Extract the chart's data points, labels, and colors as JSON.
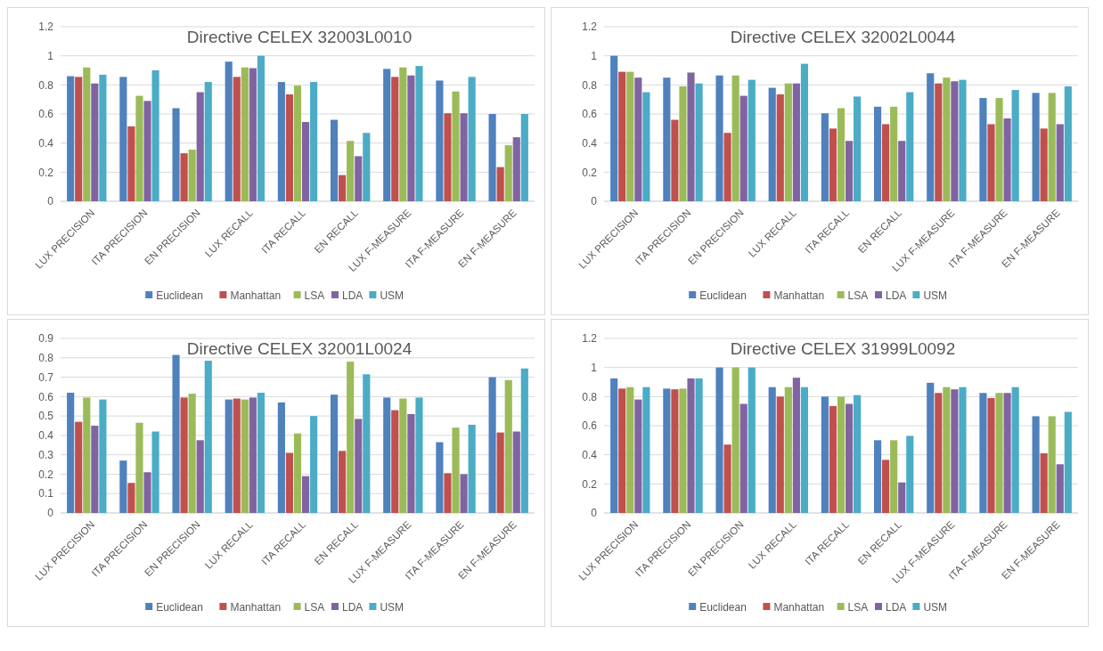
{
  "chart_data": [
    {
      "type": "bar",
      "title": "Directive CELEX 32003L0010",
      "categories": [
        "LUX PRECISION",
        "ITA PRECISION",
        "EN PRECISION",
        "LUX RECALL",
        "ITA RECALL",
        "EN RECALL",
        "LUX F-MEASURE",
        "ITA F-MEASURE",
        "EN F-MEASURE"
      ],
      "ylim": [
        0,
        1.2
      ],
      "yticks": [
        0,
        0.2,
        0.4,
        0.6,
        0.8,
        1,
        1.2
      ],
      "grid": "y",
      "legend": "bottom",
      "series": [
        {
          "name": "Euclidean",
          "color": "#4f81bd",
          "values": [
            0.86,
            0.855,
            0.64,
            0.96,
            0.82,
            0.56,
            0.91,
            0.83,
            0.6
          ]
        },
        {
          "name": "Manhattan",
          "color": "#c0504d",
          "values": [
            0.855,
            0.515,
            0.33,
            0.855,
            0.735,
            0.18,
            0.855,
            0.605,
            0.235
          ]
        },
        {
          "name": "LSA",
          "color": "#9bbb59",
          "values": [
            0.92,
            0.725,
            0.355,
            0.92,
            0.795,
            0.415,
            0.92,
            0.755,
            0.385
          ]
        },
        {
          "name": "LDA",
          "color": "#8064a2",
          "values": [
            0.81,
            0.69,
            0.75,
            0.915,
            0.545,
            0.31,
            0.865,
            0.605,
            0.44
          ]
        },
        {
          "name": "USM",
          "color": "#4bacc6",
          "values": [
            0.87,
            0.9,
            0.82,
            1,
            0.82,
            0.47,
            0.93,
            0.855,
            0.6
          ]
        }
      ]
    },
    {
      "type": "bar",
      "title": "Directive CELEX 32002L0044",
      "categories": [
        "LUX PRECISION",
        "ITA PRECISION",
        "EN PRECISION",
        "LUX RECALL",
        "ITA RECALL",
        "EN RECALL",
        "LUX F-MEASURE",
        "ITA F-MEASURE",
        "EN F-MEASURE"
      ],
      "ylim": [
        0,
        1.2
      ],
      "yticks": [
        0,
        0.2,
        0.4,
        0.6,
        0.8,
        1,
        1.2
      ],
      "grid": "y",
      "legend": "bottom",
      "series": [
        {
          "name": "Euclidean",
          "color": "#4f81bd",
          "values": [
            1,
            0.85,
            0.865,
            0.78,
            0.605,
            0.65,
            0.88,
            0.71,
            0.745
          ]
        },
        {
          "name": "Manhattan",
          "color": "#c0504d",
          "values": [
            0.89,
            0.56,
            0.47,
            0.735,
            0.5,
            0.53,
            0.81,
            0.53,
            0.5
          ]
        },
        {
          "name": "LSA",
          "color": "#9bbb59",
          "values": [
            0.89,
            0.79,
            0.865,
            0.81,
            0.64,
            0.65,
            0.85,
            0.71,
            0.745
          ]
        },
        {
          "name": "LDA",
          "color": "#8064a2",
          "values": [
            0.85,
            0.885,
            0.725,
            0.81,
            0.415,
            0.415,
            0.825,
            0.57,
            0.53
          ]
        },
        {
          "name": "USM",
          "color": "#4bacc6",
          "values": [
            0.75,
            0.81,
            0.835,
            0.945,
            0.72,
            0.75,
            0.835,
            0.765,
            0.79
          ]
        }
      ]
    },
    {
      "type": "bar",
      "title": "Directive CELEX 32001L0024",
      "categories": [
        "LUX PRECISION",
        "ITA PRECISION",
        "EN PRECISION",
        "LUX RECALL",
        "ITA RECALL",
        "EN RECALL",
        "LUX F-MEASURE",
        "ITA F-MEASURE",
        "EN F-MEASURE"
      ],
      "ylim": [
        0,
        0.9
      ],
      "yticks": [
        0,
        0.1,
        0.2,
        0.3,
        0.4,
        0.5,
        0.6,
        0.7,
        0.8,
        0.9
      ],
      "grid": "y",
      "legend": "bottom",
      "series": [
        {
          "name": "Euclidean",
          "color": "#4f81bd",
          "values": [
            0.62,
            0.27,
            0.815,
            0.585,
            0.57,
            0.61,
            0.595,
            0.365,
            0.7
          ]
        },
        {
          "name": "Manhattan",
          "color": "#c0504d",
          "values": [
            0.47,
            0.155,
            0.595,
            0.59,
            0.31,
            0.32,
            0.53,
            0.205,
            0.415
          ]
        },
        {
          "name": "LSA",
          "color": "#9bbb59",
          "values": [
            0.595,
            0.465,
            0.615,
            0.585,
            0.41,
            0.78,
            0.59,
            0.44,
            0.685
          ]
        },
        {
          "name": "LDA",
          "color": "#8064a2",
          "values": [
            0.45,
            0.21,
            0.375,
            0.595,
            0.19,
            0.485,
            0.51,
            0.2,
            0.42
          ]
        },
        {
          "name": "USM",
          "color": "#4bacc6",
          "values": [
            0.585,
            0.42,
            0.785,
            0.62,
            0.5,
            0.715,
            0.595,
            0.455,
            0.745
          ]
        }
      ]
    },
    {
      "type": "bar",
      "title": "Directive CELEX 31999L0092",
      "categories": [
        "LUX PRECISION",
        "ITA PRECISION",
        "EN PRECISION",
        "LUX RECALL",
        "ITA RECALL",
        "EN RECALL",
        "LUX F-MEASURE",
        "ITA F-MEASURE",
        "EN F-MEASURE"
      ],
      "ylim": [
        0,
        1.2
      ],
      "yticks": [
        0,
        0.2,
        0.4,
        0.6,
        0.8,
        1,
        1.2
      ],
      "grid": "y",
      "legend": "bottom",
      "series": [
        {
          "name": "Euclidean",
          "color": "#4f81bd",
          "values": [
            0.925,
            0.855,
            1,
            0.865,
            0.8,
            0.5,
            0.895,
            0.825,
            0.665
          ]
        },
        {
          "name": "Manhattan",
          "color": "#c0504d",
          "values": [
            0.855,
            0.85,
            0.47,
            0.8,
            0.735,
            0.365,
            0.825,
            0.79,
            0.41
          ]
        },
        {
          "name": "LSA",
          "color": "#9bbb59",
          "values": [
            0.865,
            0.855,
            1,
            0.865,
            0.8,
            0.5,
            0.865,
            0.825,
            0.665
          ]
        },
        {
          "name": "LDA",
          "color": "#8064a2",
          "values": [
            0.78,
            0.925,
            0.75,
            0.93,
            0.75,
            0.21,
            0.85,
            0.825,
            0.335
          ]
        },
        {
          "name": "USM",
          "color": "#4bacc6",
          "values": [
            0.865,
            0.925,
            1,
            0.865,
            0.81,
            0.53,
            0.865,
            0.865,
            0.695
          ]
        }
      ]
    }
  ]
}
